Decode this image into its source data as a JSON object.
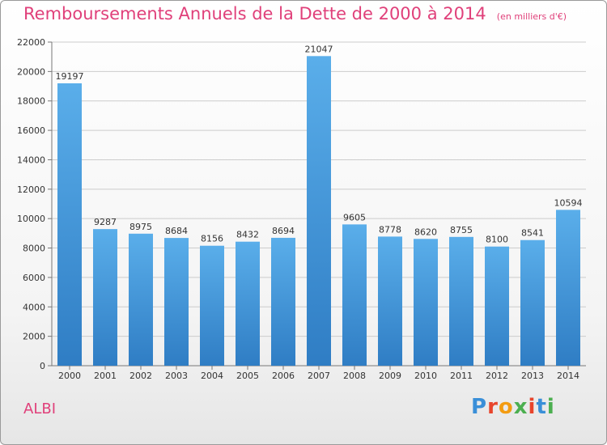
{
  "header": {
    "title": "Remboursements Annuels de la Dette de 2000 à 2014",
    "unit_note": "(en milliers d'€)"
  },
  "footer": {
    "city": "ALBI",
    "logo_text": "Proxiti",
    "logo_colors": [
      "#3a8fd8",
      "#e8452c",
      "#f39c12",
      "#4caf50",
      "#e8452c",
      "#3a8fd8",
      "#4caf50"
    ]
  },
  "chart_data": {
    "type": "bar",
    "categories": [
      "2000",
      "2001",
      "2002",
      "2003",
      "2004",
      "2005",
      "2006",
      "2007",
      "2008",
      "2009",
      "2010",
      "2011",
      "2012",
      "2013",
      "2014"
    ],
    "values": [
      19197,
      9287,
      8975,
      8684,
      8156,
      8432,
      8694,
      21047,
      9605,
      8778,
      8620,
      8755,
      8100,
      8541,
      10594
    ],
    "ylim": [
      0,
      22000
    ],
    "yticks": [
      0,
      2000,
      4000,
      6000,
      8000,
      10000,
      12000,
      14000,
      16000,
      18000,
      20000,
      22000
    ],
    "bar_color": "#3f8fd8",
    "grid": true,
    "grid_color": "#cccccc"
  }
}
